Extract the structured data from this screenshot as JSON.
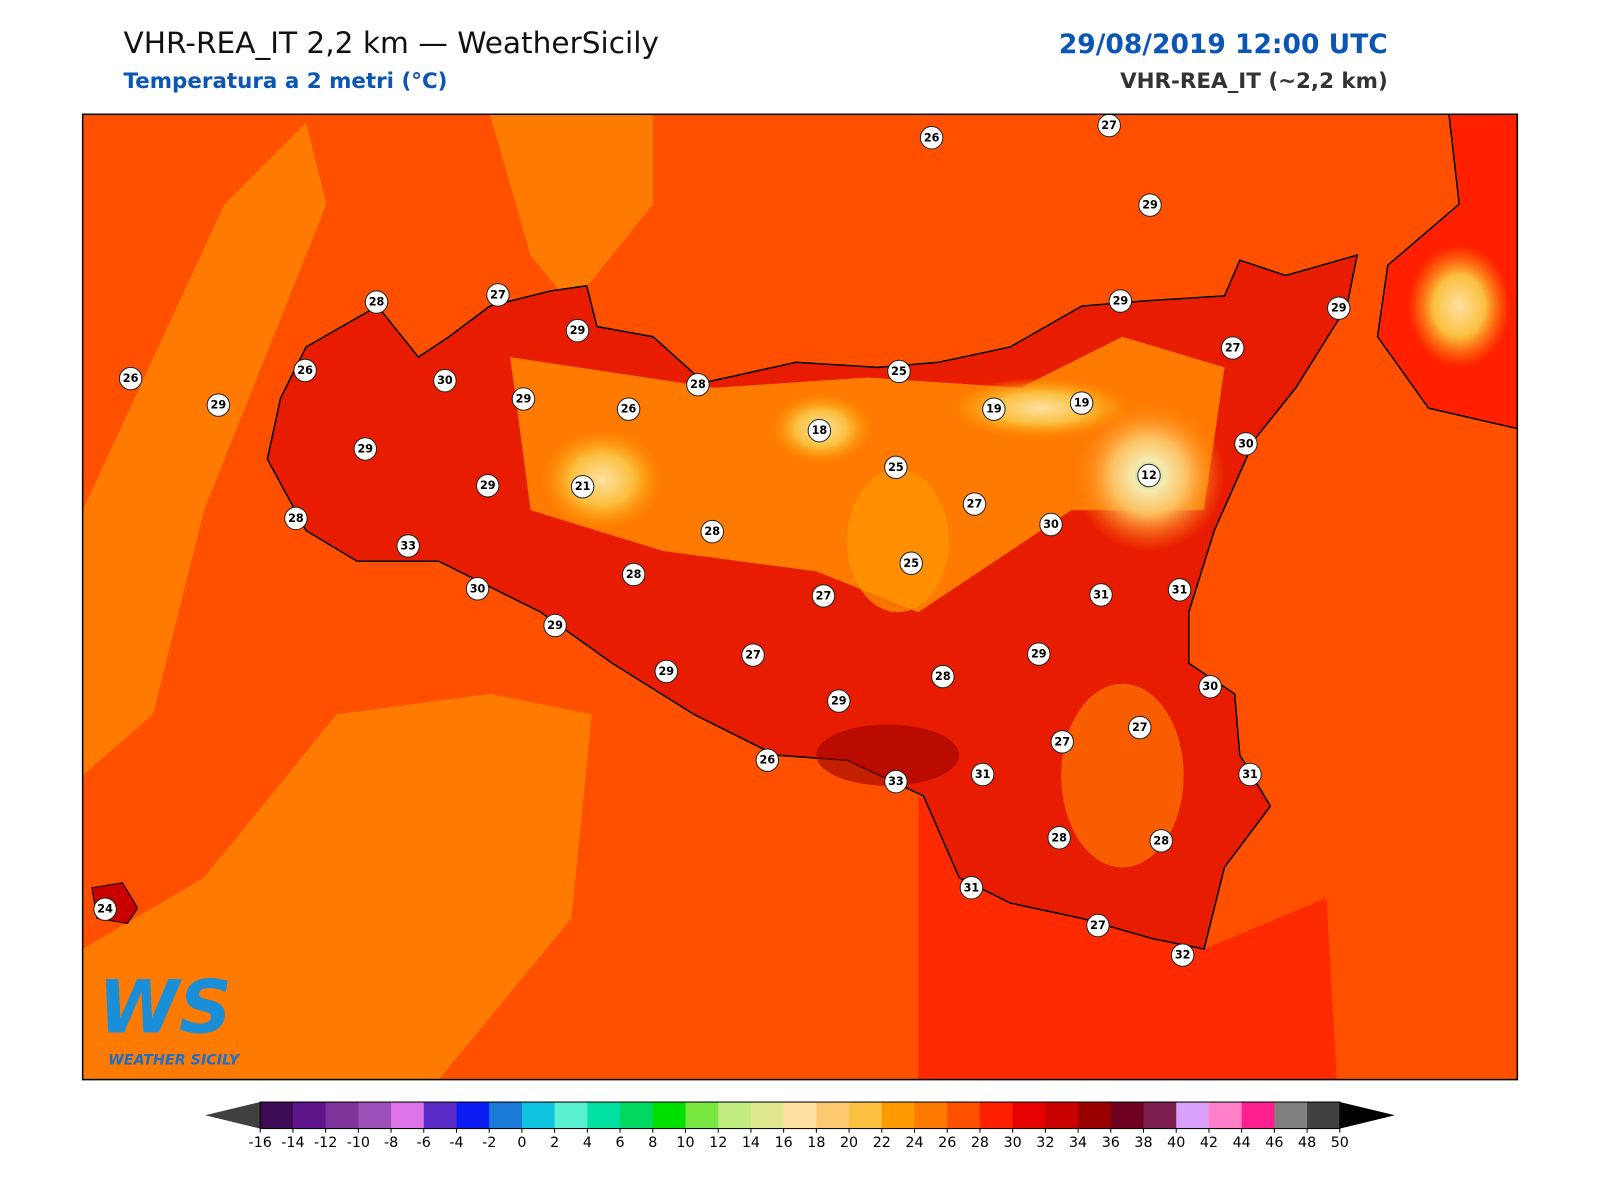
{
  "header": {
    "title": "VHR-REA_IT 2,2 km — WeatherSicily",
    "subtitle": "Temperatura a 2 metri (°C)",
    "date": "29/08/2019 12:00 UTC",
    "model": "VHR-REA_IT (~2,2 km)"
  },
  "stations": [
    26,
    27,
    29,
    28,
    27,
    29,
    29,
    29,
    26,
    26,
    29,
    30,
    29,
    26,
    28,
    25,
    27,
    18,
    19,
    19,
    30,
    29,
    25,
    12,
    29,
    21,
    27,
    28,
    33,
    28,
    30,
    25,
    28,
    30,
    31,
    31,
    27,
    29,
    27,
    29,
    29,
    28,
    30,
    29,
    27,
    27,
    26,
    33,
    31,
    31,
    28,
    28,
    31,
    24,
    27,
    32
  ],
  "logo": {
    "mark": "WS",
    "name": "WEATHER SICILY"
  },
  "colorbar": {
    "ticks": [
      -16,
      -14,
      -12,
      -10,
      -8,
      -6,
      -4,
      -2,
      0,
      2,
      4,
      6,
      8,
      10,
      12,
      14,
      16,
      18,
      20,
      22,
      24,
      26,
      28,
      30,
      32,
      34,
      36,
      38,
      40,
      42,
      44,
      46,
      48,
      50
    ],
    "colors": [
      "#3d0a55",
      "#5e1489",
      "#7d3399",
      "#9c4fb8",
      "#dd74e8",
      "#5b2bc8",
      "#0d1cf5",
      "#1a7ad8",
      "#10c3e0",
      "#5aefd0",
      "#00e0a0",
      "#00d860",
      "#00e000",
      "#78e840",
      "#c0ec80",
      "#e0e890",
      "#ffe0a0",
      "#fcc870",
      "#fbc040",
      "#ff9900",
      "#ff7a00",
      "#ff5000",
      "#ff2000",
      "#e60000",
      "#c80000",
      "#9a0000",
      "#6e0020",
      "#7d1f4e",
      "#d8a0f8",
      "#ff80c8",
      "#ff2090",
      "#808080",
      "#404040"
    ],
    "under": "#404040",
    "over": "#000000"
  }
}
